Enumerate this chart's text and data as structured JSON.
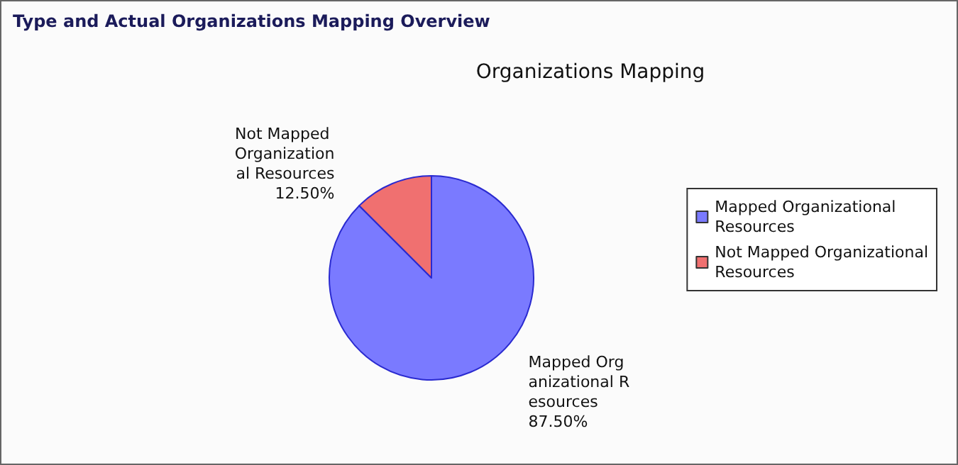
{
  "chart_data": {
    "type": "pie",
    "title": "Type and Actual Organizations Mapping Overview",
    "subtitle": "Organizations Mapping",
    "categories": [
      "Mapped Organizational Resources",
      "Not Mapped Organizational Resources"
    ],
    "values": [
      87.5,
      12.5
    ],
    "colors": [
      "#7a7aff",
      "#f07070"
    ],
    "value_labels": [
      "87.50%",
      "12.50%"
    ],
    "legend": "right"
  }
}
